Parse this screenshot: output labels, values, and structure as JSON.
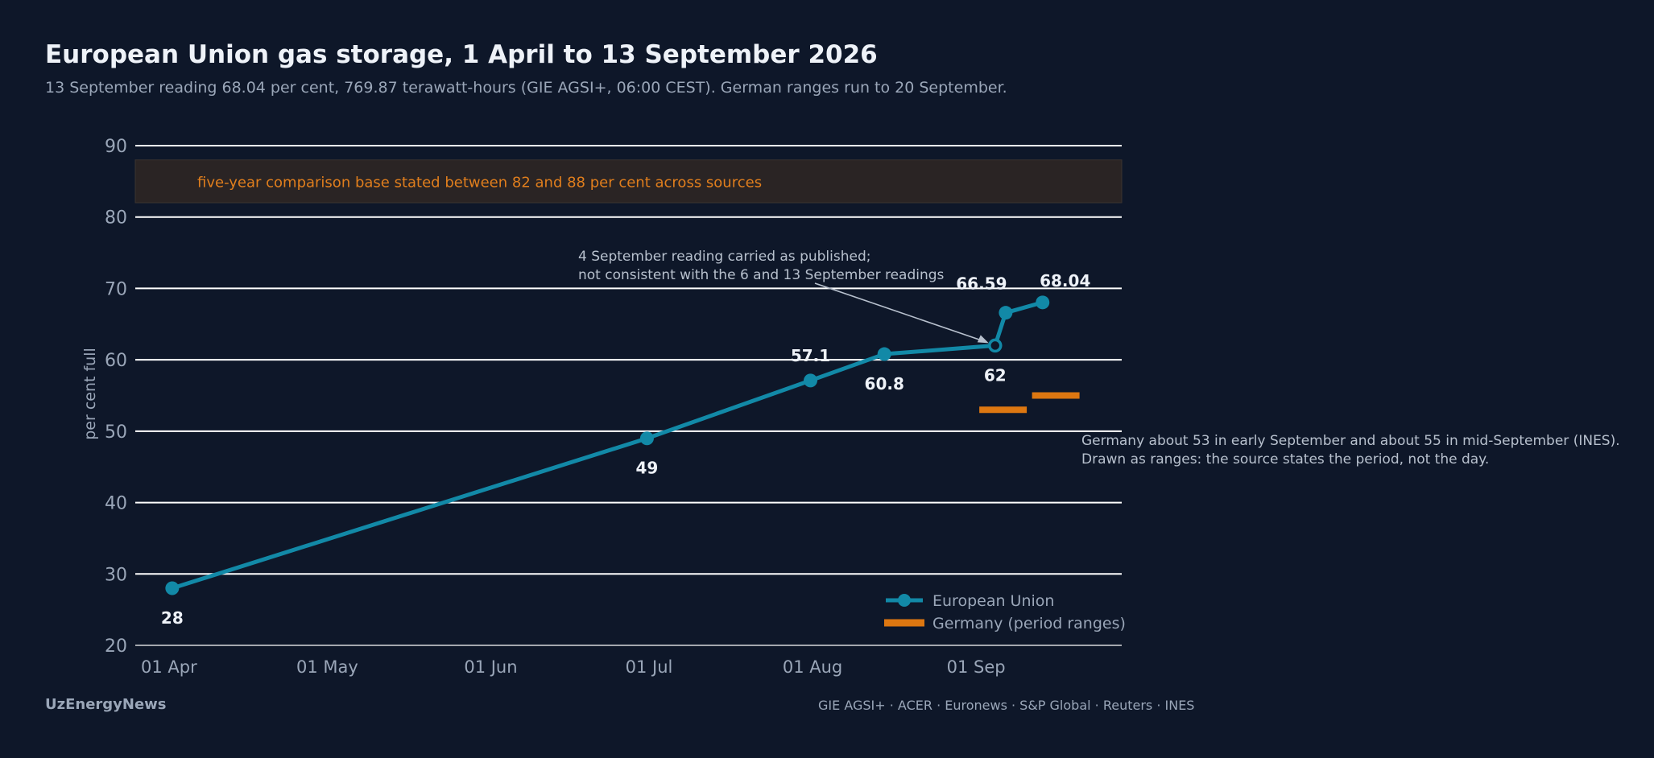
{
  "header": {
    "title": "European Union gas storage, 1 April to 13 September 2026",
    "subtitle": "13 September reading 68.04 per cent, 769.87 terawatt-hours (GIE AGSI+, 06:00 CEST). German ranges run to 20 September."
  },
  "footer": {
    "brand": "UzEnergyNews",
    "sources": "GIE AGSI+ · ACER · Euronews · S&P Global · Reuters · INES"
  },
  "colors": {
    "background": "#0e1729",
    "eu_series": "#1289a7",
    "germany_series": "#dd7711",
    "band_fill": "#2a2424",
    "band_text": "#e07e1d",
    "gridline": "#ffffff",
    "axis_text": "#9aa6b8",
    "label_text": "#eef2f8"
  },
  "chart_data": {
    "type": "line",
    "ylabel": "per cent full",
    "xlabel": "",
    "ylim": [
      20,
      90
    ],
    "yticks": [
      20,
      30,
      40,
      50,
      60,
      70,
      80,
      90
    ],
    "xlim": [
      "2026-03-25",
      "2026-09-28"
    ],
    "xticks": [
      {
        "date": "2026-04-01",
        "label": "01 Apr"
      },
      {
        "date": "2026-05-01",
        "label": "01 May"
      },
      {
        "date": "2026-06-01",
        "label": "01 Jun"
      },
      {
        "date": "2026-07-01",
        "label": "01 Jul"
      },
      {
        "date": "2026-08-01",
        "label": "01 Aug"
      },
      {
        "date": "2026-09-01",
        "label": "01 Sep"
      }
    ],
    "grid": true,
    "legend_position": "bottom-right",
    "band": {
      "range": [
        82,
        88
      ],
      "label": "five-year comparison base stated between 82 and 88 per cent across sources"
    },
    "series": [
      {
        "name": "European Union",
        "points": [
          {
            "date": "2026-04-01",
            "value": 28,
            "label": "28",
            "label_pos": "below"
          },
          {
            "date": "2026-06-30",
            "value": 49,
            "label": "49",
            "label_pos": "below"
          },
          {
            "date": "2026-07-31",
            "value": 57.1,
            "label": "57.1",
            "label_pos": "above"
          },
          {
            "date": "2026-08-14",
            "value": 60.8,
            "label": "60.8",
            "label_pos": "below"
          },
          {
            "date": "2026-09-04",
            "value": 62,
            "label": "62",
            "label_pos": "below",
            "hollow": true
          },
          {
            "date": "2026-09-06",
            "value": 66.59,
            "label": "66.59",
            "label_pos": "above-left"
          },
          {
            "date": "2026-09-13",
            "value": 68.04,
            "label": "68.04",
            "label_pos": "above-right"
          }
        ]
      },
      {
        "name": "Germany (period ranges)",
        "ranges": [
          {
            "start": "2026-09-01",
            "end": "2026-09-10",
            "value": 53
          },
          {
            "start": "2026-09-11",
            "end": "2026-09-20",
            "value": 55
          }
        ]
      }
    ],
    "annotations": [
      {
        "lines": [
          "4 September reading carried as published;",
          "not consistent with the 6 and 13 September readings"
        ],
        "target_date": "2026-09-04",
        "target_value": 62
      },
      {
        "lines": [
          "Germany about 53 in early September and about 55 in mid-September (INES).",
          "Drawn as ranges: the source states the period, not the day."
        ]
      }
    ]
  }
}
